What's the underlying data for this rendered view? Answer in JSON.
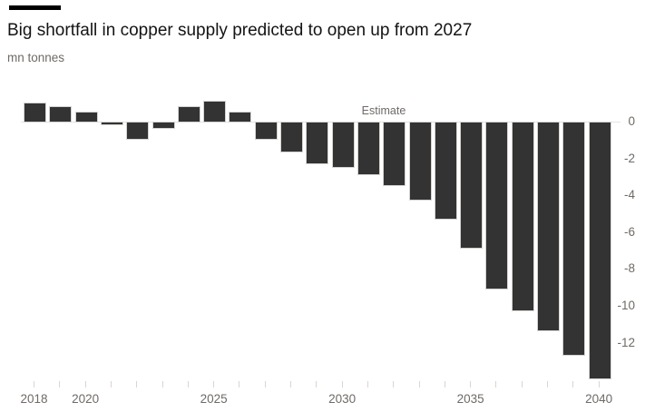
{
  "header": {
    "title": "Big shortfall in copper supply predicted to open up from 2027",
    "units": "mn tonnes"
  },
  "chart_data": {
    "type": "bar",
    "title": "Big shortfall in copper supply predicted to open up from 2027",
    "ylabel": "mn tonnes",
    "annotation": "Estimate",
    "categories": [
      "2018",
      "2019",
      "2020",
      "2021",
      "2022",
      "2023",
      "2024",
      "2025",
      "2026",
      "2027",
      "2028",
      "2029",
      "2030",
      "2031",
      "2032",
      "2033",
      "2034",
      "2035",
      "2036",
      "2037",
      "2038",
      "2039",
      "2040"
    ],
    "values": [
      1.0,
      0.8,
      0.5,
      -0.1,
      -0.9,
      -0.3,
      0.8,
      1.1,
      0.5,
      -0.9,
      -1.6,
      -2.2,
      -2.4,
      -2.8,
      -3.4,
      -4.2,
      -5.2,
      -6.8,
      -9.0,
      -10.2,
      -11.3,
      -12.6,
      -13.9
    ],
    "x_labeled_ticks": [
      "2018",
      "2020",
      "2025",
      "2030",
      "2035",
      "2040"
    ],
    "y_ticks": [
      0,
      -2,
      -4,
      -6,
      -8,
      -10,
      -12
    ],
    "ylim": [
      -14,
      1.2
    ],
    "grid": "off",
    "legend": "none",
    "bar_color": "#333333",
    "bar_stroke_color": "#d6d3d0",
    "text_color": "#141414",
    "muted_text_color": "#6f6a66",
    "axis_tick_color": "#d9d6d3",
    "background_color": "#ffffff"
  }
}
